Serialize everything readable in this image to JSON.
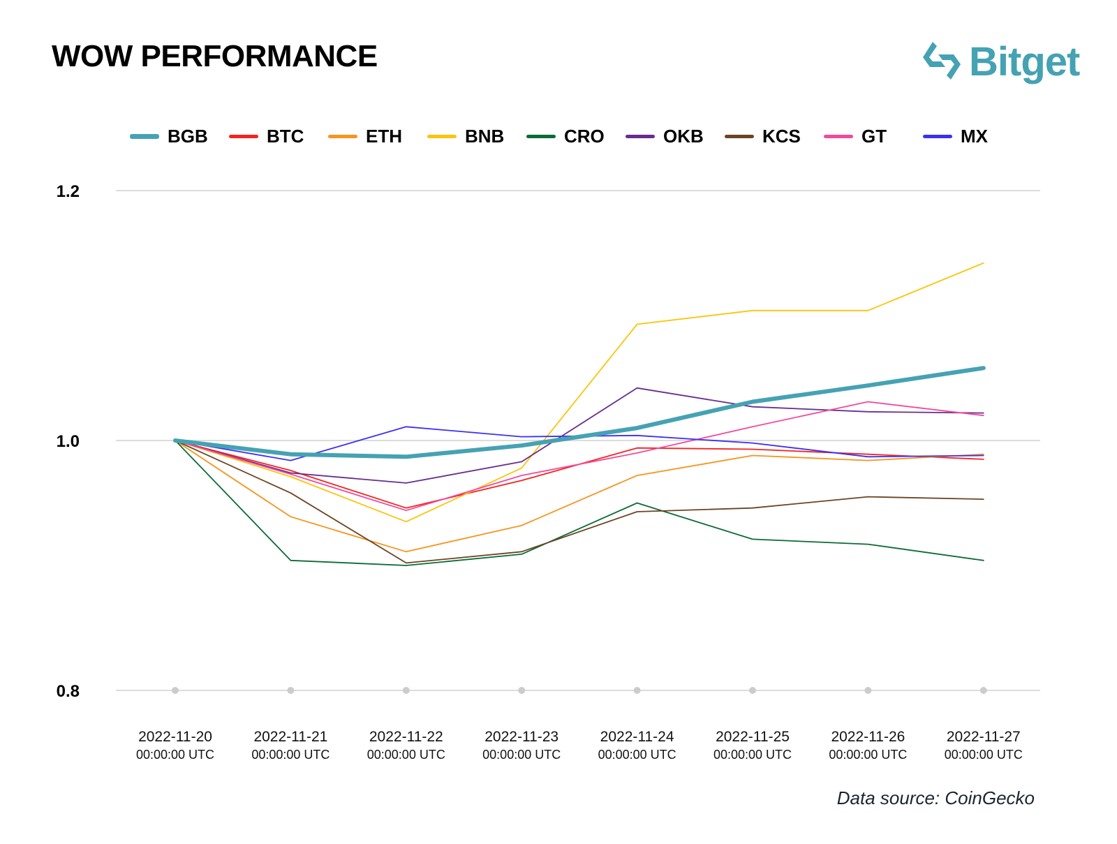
{
  "header": {
    "title": "WOW PERFORMANCE",
    "logo_text": "Bitget",
    "logo_icon": "bitget-arrows-icon",
    "brand_color": "#45a2b3"
  },
  "footer": {
    "source": "Data source: CoinGecko"
  },
  "chart_data": {
    "type": "line",
    "title": "WOW PERFORMANCE",
    "xlabel": "",
    "ylabel": "",
    "ylim": [
      0.8,
      1.2
    ],
    "yticks": [
      "1.2",
      "1.0",
      "0.8"
    ],
    "ytick_values": [
      1.2,
      1.0,
      0.8
    ],
    "grid": true,
    "legend_position": "top",
    "x": [
      {
        "date": "2022-11-20",
        "time": "00:00:00 UTC"
      },
      {
        "date": "2022-11-21",
        "time": "00:00:00 UTC"
      },
      {
        "date": "2022-11-22",
        "time": "00:00:00 UTC"
      },
      {
        "date": "2022-11-23",
        "time": "00:00:00 UTC"
      },
      {
        "date": "2022-11-24",
        "time": "00:00:00 UTC"
      },
      {
        "date": "2022-11-25",
        "time": "00:00:00 UTC"
      },
      {
        "date": "2022-11-26",
        "time": "00:00:00 UTC"
      },
      {
        "date": "2022-11-27",
        "time": "00:00:00 UTC"
      }
    ],
    "series": [
      {
        "name": "BGB",
        "color": "#45a2b3",
        "emphasis": true,
        "values": [
          1.0,
          0.989,
          0.987,
          0.996,
          1.01,
          1.031,
          1.044,
          1.058
        ]
      },
      {
        "name": "BTC",
        "color": "#f5231f",
        "emphasis": false,
        "values": [
          1.0,
          0.976,
          0.946,
          0.968,
          0.994,
          0.993,
          0.989,
          0.985
        ]
      },
      {
        "name": "ETH",
        "color": "#f7941d",
        "emphasis": false,
        "values": [
          1.0,
          0.939,
          0.911,
          0.932,
          0.972,
          0.988,
          0.984,
          0.989
        ]
      },
      {
        "name": "BNB",
        "color": "#fcc40b",
        "emphasis": false,
        "values": [
          1.0,
          0.971,
          0.935,
          0.978,
          1.093,
          1.104,
          1.104,
          1.142
        ]
      },
      {
        "name": "CRO",
        "color": "#0b6b35",
        "emphasis": false,
        "values": [
          1.0,
          0.904,
          0.9,
          0.909,
          0.95,
          0.921,
          0.917,
          0.904
        ]
      },
      {
        "name": "OKB",
        "color": "#652d90",
        "emphasis": false,
        "values": [
          1.0,
          0.974,
          0.966,
          0.983,
          1.042,
          1.027,
          1.023,
          1.022
        ]
      },
      {
        "name": "KCS",
        "color": "#6b4423",
        "emphasis": false,
        "values": [
          1.0,
          0.958,
          0.902,
          0.911,
          0.943,
          0.946,
          0.955,
          0.953
        ]
      },
      {
        "name": "GT",
        "color": "#f24a9b",
        "emphasis": false,
        "values": [
          1.0,
          0.973,
          0.944,
          0.972,
          0.99,
          1.011,
          1.031,
          1.02
        ]
      },
      {
        "name": "MX",
        "color": "#3b2ff5",
        "emphasis": false,
        "values": [
          1.0,
          0.984,
          1.011,
          1.003,
          1.004,
          0.998,
          0.987,
          0.988
        ]
      }
    ]
  }
}
